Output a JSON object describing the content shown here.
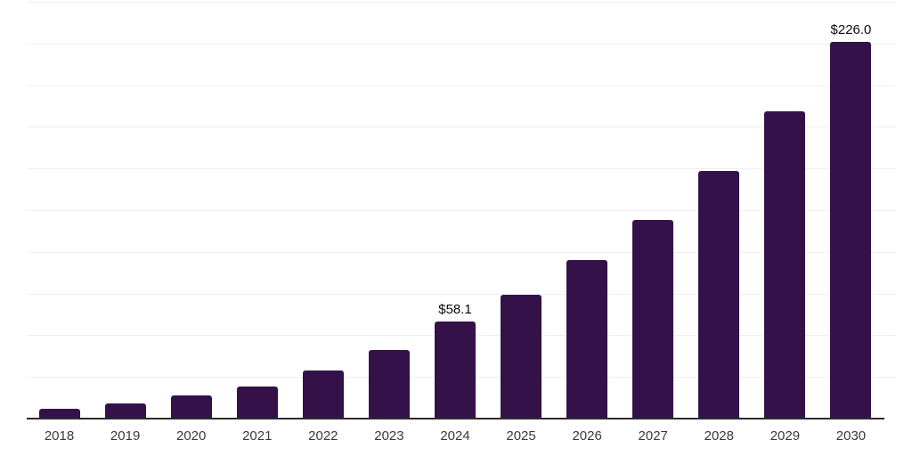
{
  "chart_data": {
    "type": "bar",
    "title": "",
    "xlabel": "",
    "ylabel": "",
    "categories": [
      "2018",
      "2019",
      "2020",
      "2021",
      "2022",
      "2023",
      "2024",
      "2025",
      "2026",
      "2027",
      "2028",
      "2029",
      "2030"
    ],
    "values": [
      6.1,
      8.9,
      13.9,
      19.3,
      28.9,
      41.0,
      58.1,
      74.2,
      94.9,
      119.0,
      148.3,
      184.3,
      226.0
    ],
    "point_labels": [
      "",
      "",
      "",
      "",
      "",
      "",
      "$58.1",
      "",
      "",
      "",
      "",
      "",
      "$226.0"
    ],
    "ylim": [
      0,
      250
    ],
    "grid_step": 25,
    "grid": true,
    "legend": false,
    "y_tick_labels_visible": false,
    "colors": {
      "bar": "#35114A",
      "axis": "#2b2b2b",
      "gridline": "#efefef",
      "tick_label": "#3a3a3a",
      "value_label": "#0a0a0a",
      "background": "#ffffff"
    }
  }
}
